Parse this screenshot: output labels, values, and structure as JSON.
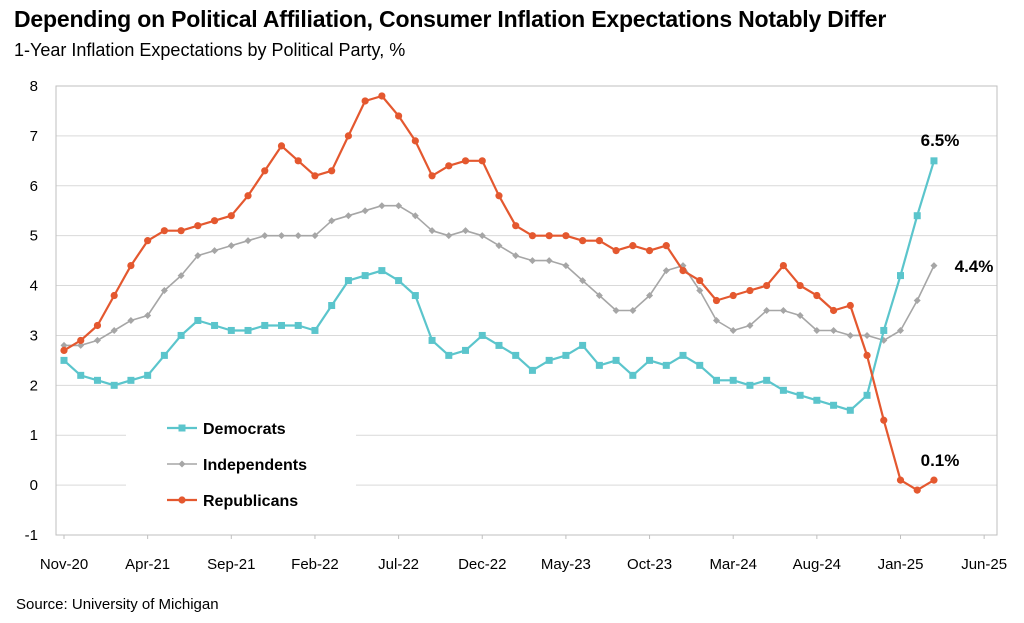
{
  "title": "Depending on Political Affiliation, Consumer Inflation Expectations Notably Differ",
  "subtitle": "1-Year Inflation Expectations by Political Party, %",
  "source": "Source: University of Michigan",
  "colors": {
    "democrats": "#5bc5cc",
    "independents": "#a6a6a6",
    "republicans": "#e4582f",
    "grid": "#d9d9d9"
  },
  "chart_data": {
    "type": "line",
    "ylim": [
      -1,
      8
    ],
    "yticks": [
      "-1",
      "0",
      "1",
      "2",
      "3",
      "4",
      "5",
      "6",
      "7",
      "8"
    ],
    "xticks": [
      "Nov-20",
      "Apr-21",
      "Sep-21",
      "Feb-22",
      "Jul-22",
      "Dec-22",
      "May-23",
      "Oct-23",
      "Mar-24",
      "Aug-24",
      "Jan-25",
      "Jun-25"
    ],
    "grid": true,
    "legend_position": "bottom-left",
    "series": [
      {
        "name": "Democrats",
        "key": "democrats",
        "marker": "square",
        "end_label": "6.5%",
        "values": [
          2.5,
          2.2,
          2.1,
          2.0,
          2.1,
          2.2,
          2.6,
          3.0,
          3.3,
          3.2,
          3.1,
          3.1,
          3.2,
          3.2,
          3.2,
          3.1,
          3.6,
          4.1,
          4.2,
          4.3,
          4.1,
          3.8,
          2.9,
          2.6,
          2.7,
          3.0,
          2.8,
          2.6,
          2.3,
          2.5,
          2.6,
          2.8,
          2.4,
          2.5,
          2.2,
          2.5,
          2.4,
          2.6,
          2.4,
          2.1,
          2.1,
          2.0,
          2.1,
          1.9,
          1.8,
          1.7,
          1.6,
          1.5,
          1.8,
          3.1,
          4.2,
          5.4,
          6.5
        ]
      },
      {
        "name": "Independents",
        "key": "independents",
        "marker": "diamond",
        "end_label": "4.4%",
        "values": [
          2.8,
          2.8,
          2.9,
          3.1,
          3.3,
          3.4,
          3.9,
          4.2,
          4.6,
          4.7,
          4.8,
          4.9,
          5.0,
          5.0,
          5.0,
          5.0,
          5.3,
          5.4,
          5.5,
          5.6,
          5.6,
          5.4,
          5.1,
          5.0,
          5.1,
          5.0,
          4.8,
          4.6,
          4.5,
          4.5,
          4.4,
          4.1,
          3.8,
          3.5,
          3.5,
          3.8,
          4.3,
          4.4,
          3.9,
          3.3,
          3.1,
          3.2,
          3.5,
          3.5,
          3.4,
          3.1,
          3.1,
          3.0,
          3.0,
          2.9,
          3.1,
          3.7,
          4.4
        ]
      },
      {
        "name": "Republicans",
        "key": "republicans",
        "marker": "circle",
        "end_label": "0.1%",
        "values": [
          2.7,
          2.9,
          3.2,
          3.8,
          4.4,
          4.9,
          5.1,
          5.1,
          5.2,
          5.3,
          5.4,
          5.8,
          6.3,
          6.8,
          6.5,
          6.2,
          6.3,
          7.0,
          7.7,
          7.8,
          7.4,
          6.9,
          6.2,
          6.4,
          6.5,
          6.5,
          5.8,
          5.2,
          5.0,
          5.0,
          5.0,
          4.9,
          4.9,
          4.7,
          4.8,
          4.7,
          4.8,
          4.3,
          4.1,
          3.7,
          3.8,
          3.9,
          4.0,
          4.4,
          4.0,
          3.8,
          3.5,
          3.6,
          2.6,
          1.3,
          0.1,
          -0.1,
          0.1
        ]
      }
    ]
  }
}
